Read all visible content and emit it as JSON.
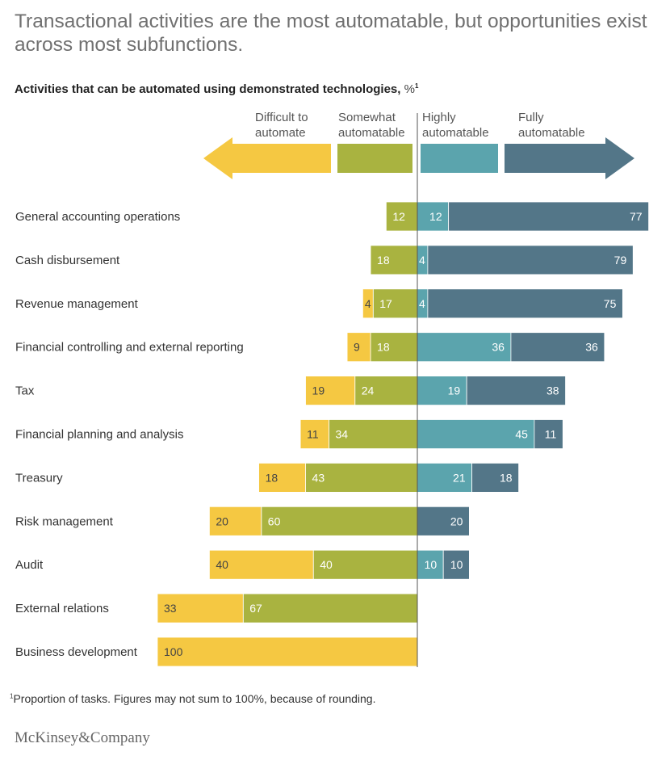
{
  "title": "Transactional activities are the most automatable, but opportunities exist across most subfunctions.",
  "subtitle": "Activities that can be automated using demonstrated technologies,",
  "subtitle_unit": "%",
  "subtitle_footnote_mark": "1",
  "footnote_mark": "1",
  "footnote": "Proportion of tasks. Figures may not sum to 100%, because of rounding.",
  "logo_text": "McKinsey&Company",
  "colors": {
    "difficult": "#f5c842",
    "somewhat": "#a9b340",
    "highly": "#5ba4ad",
    "fully": "#537688",
    "axis": "#555555"
  },
  "chart_data": {
    "type": "bar",
    "orientation": "horizontal",
    "stacked": "diverging",
    "unit": "%",
    "categories": [
      "General accounting operations",
      "Cash disbursement",
      "Revenue management",
      "Financial controlling and external reporting",
      "Tax",
      "Financial planning and analysis",
      "Treasury",
      "Risk management",
      "Audit",
      "External relations",
      "Business development"
    ],
    "series": [
      {
        "name": "Difficult to automate",
        "side": "left",
        "color": "#f5c842",
        "values": [
          0,
          0,
          4,
          9,
          19,
          11,
          18,
          20,
          40,
          33,
          100
        ]
      },
      {
        "name": "Somewhat automatable",
        "side": "left",
        "color": "#a9b340",
        "values": [
          12,
          18,
          17,
          18,
          24,
          34,
          43,
          60,
          40,
          67,
          0
        ]
      },
      {
        "name": "Highly automatable",
        "side": "right",
        "color": "#5ba4ad",
        "values": [
          12,
          4,
          4,
          36,
          19,
          45,
          21,
          0,
          10,
          0,
          0
        ]
      },
      {
        "name": "Fully automatable",
        "side": "right",
        "color": "#537688",
        "values": [
          77,
          79,
          75,
          36,
          38,
          11,
          18,
          20,
          10,
          0,
          0
        ]
      }
    ],
    "legend": [
      {
        "line1": "Difficult to",
        "line2": "automate"
      },
      {
        "line1": "Somewhat",
        "line2": "automatable"
      },
      {
        "line1": "Highly",
        "line2": "automatable"
      },
      {
        "line1": "Fully",
        "line2": "automatable"
      }
    ],
    "legend_placement": "top"
  }
}
